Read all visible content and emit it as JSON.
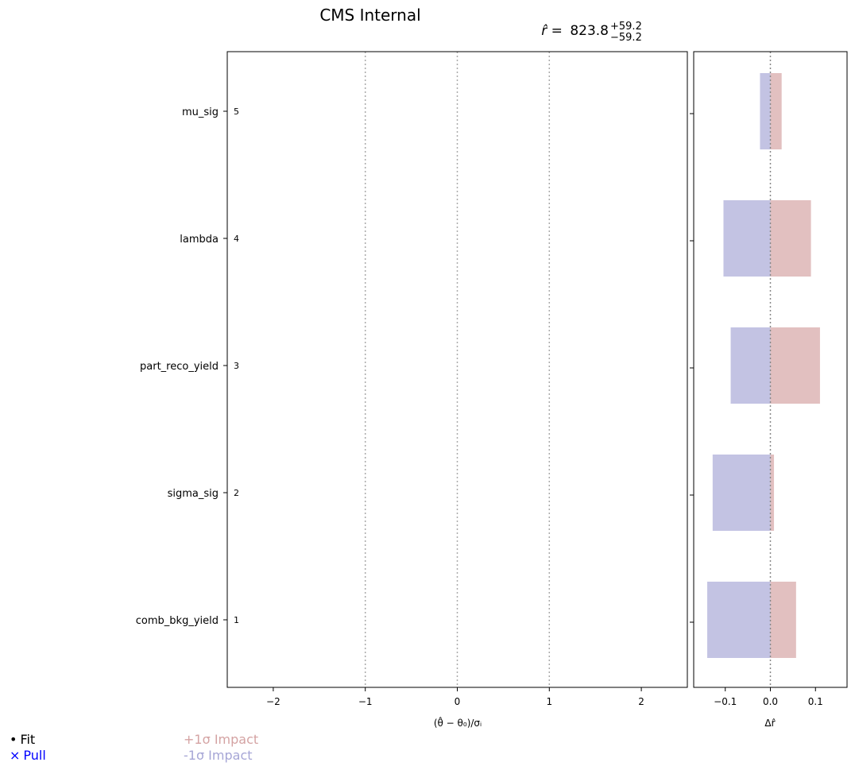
{
  "chart_data": {
    "type": "impact-pull",
    "title": "CMS Internal",
    "result": {
      "symbol": "r̂ =",
      "value": "823.8",
      "err_up": "+59.2",
      "err_down": "−59.2"
    },
    "parameters": [
      {
        "rank": "5",
        "name": "mu_sig",
        "impact_up": 0.025,
        "impact_down": -0.023
      },
      {
        "rank": "4",
        "name": "lambda",
        "impact_up": 0.09,
        "impact_down": -0.104
      },
      {
        "rank": "3",
        "name": "part_reco_yield",
        "impact_up": 0.11,
        "impact_down": -0.088
      },
      {
        "rank": "2",
        "name": "sigma_sig",
        "impact_up": 0.008,
        "impact_down": -0.128
      },
      {
        "rank": "1",
        "name": "comb_bkg_yield",
        "impact_up": 0.057,
        "impact_down": -0.14
      }
    ],
    "pulls_panel": {
      "xlabel": "(θ̂ − θ₀)/σᵢ",
      "xlim": [
        -2.5,
        2.5
      ],
      "xticks": [
        -2,
        -1,
        0,
        1,
        2
      ],
      "xtick_labels": [
        "−2",
        "−1",
        "0",
        "1",
        "2"
      ],
      "reference_lines": [
        -1,
        0,
        1
      ]
    },
    "impact_panel": {
      "xlabel": "Δr̂",
      "xlim": [
        -0.17,
        0.17
      ],
      "xticks": [
        -0.1,
        0.0,
        0.1
      ],
      "xtick_labels": [
        "−0.1",
        "0.0",
        "0.1"
      ],
      "reference_lines": [
        0
      ]
    },
    "legend": [
      {
        "marker": "•",
        "label": "Fit",
        "color": "#000000"
      },
      {
        "marker": "×",
        "label": "Pull",
        "color": "#0000ff"
      },
      {
        "marker": "",
        "label": "+1σ Impact",
        "color": "#d4a3a3"
      },
      {
        "marker": "",
        "label": "-1σ Impact",
        "color": "#a6a6d6"
      }
    ],
    "colors": {
      "impact_up": "#e2c0c0",
      "impact_down": "#c0c0e1",
      "reference": "#aaaaaa"
    }
  }
}
